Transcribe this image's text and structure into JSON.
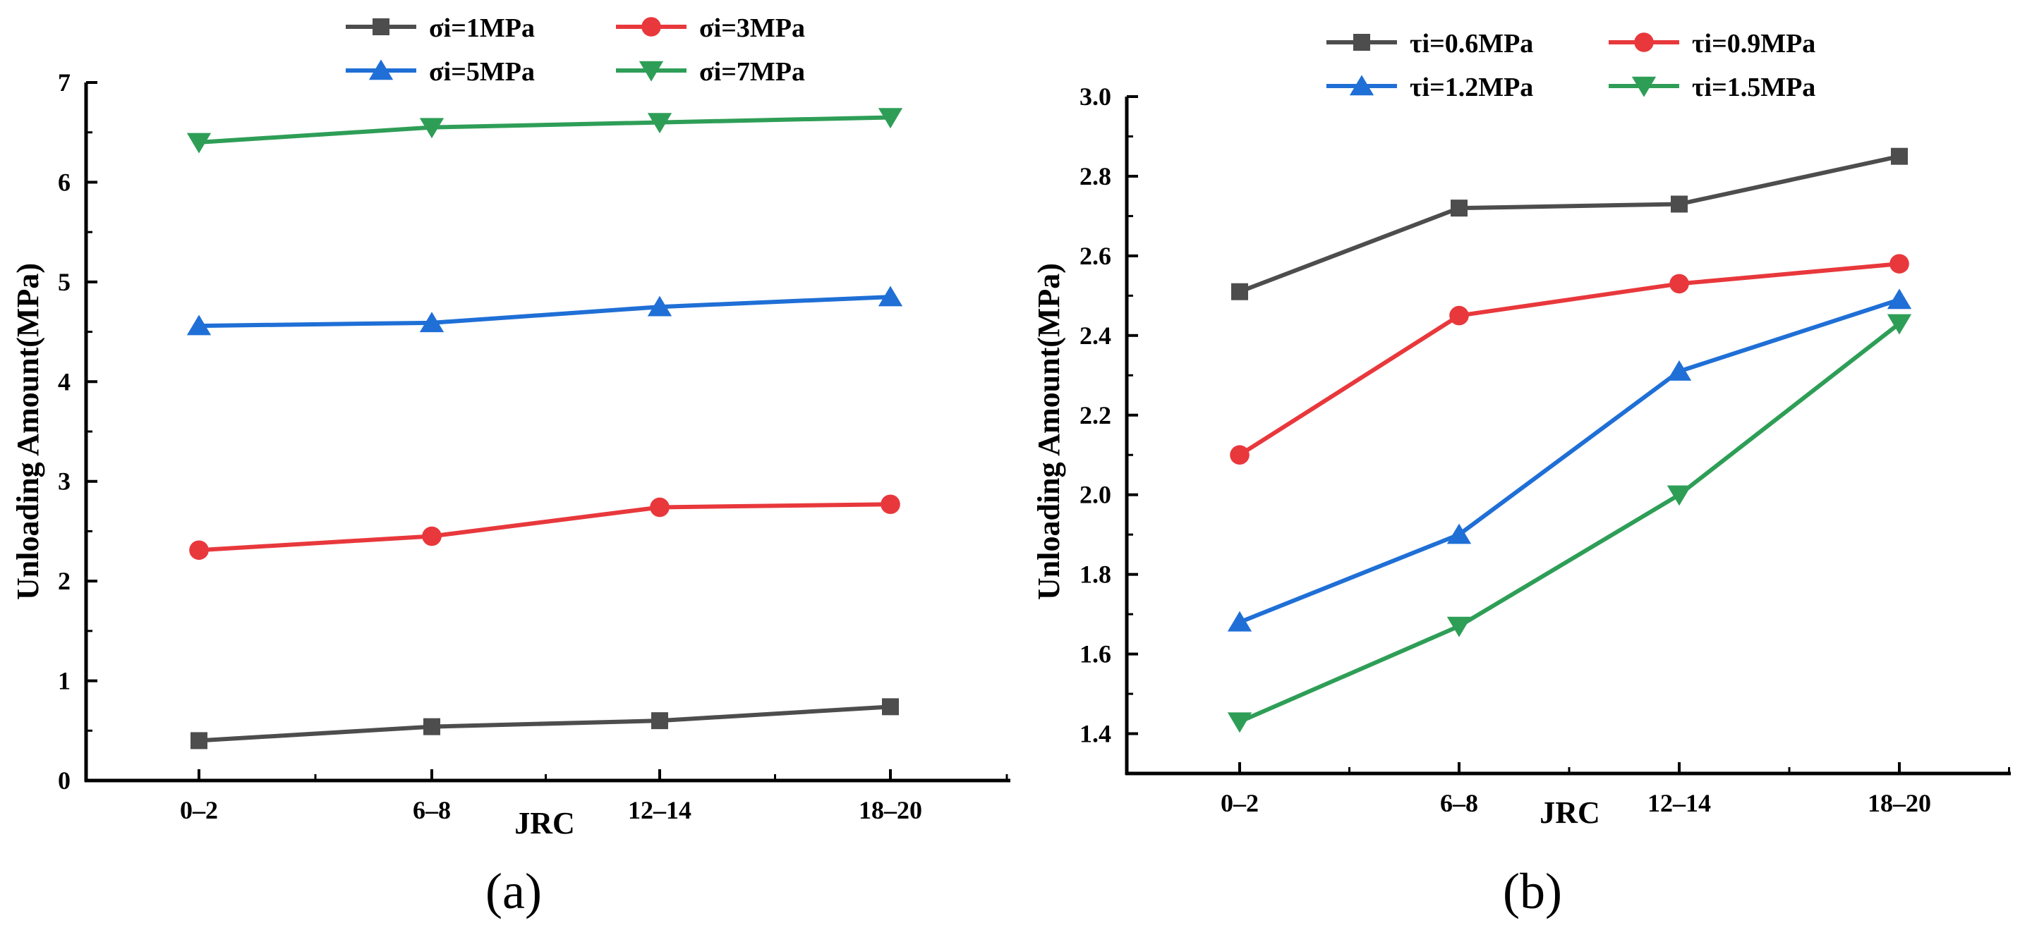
{
  "chart_data": [
    {
      "type": "line",
      "panel_label": "(a)",
      "xlabel": "JRC",
      "ylabel": "Unloading Amount(MPa)",
      "categories": [
        "0–2",
        "6–8",
        "12–14",
        "18–20"
      ],
      "ylim": [
        0,
        7
      ],
      "yticks": [
        "0",
        "1",
        "2",
        "3",
        "4",
        "5",
        "6",
        "7"
      ],
      "legend_position": "top",
      "series": [
        {
          "name": "σi=1MPa",
          "marker": "square",
          "color": "#4d4d4d",
          "values": [
            0.4,
            0.54,
            0.6,
            0.74
          ]
        },
        {
          "name": "σi=3MPa",
          "marker": "circle",
          "color": "#e8383c",
          "values": [
            2.31,
            2.45,
            2.74,
            2.77
          ]
        },
        {
          "name": "σi=5MPa",
          "marker": "triangle",
          "color": "#1f6fd6",
          "values": [
            4.56,
            4.59,
            4.75,
            4.85
          ]
        },
        {
          "name": "σi=7MPa",
          "marker": "triangle-down",
          "color": "#2e9e57",
          "values": [
            6.4,
            6.55,
            6.6,
            6.65
          ]
        }
      ]
    },
    {
      "type": "line",
      "panel_label": "(b)",
      "xlabel": "JRC",
      "ylabel": "Unloading Amount(MPa)",
      "categories": [
        "0–2",
        "6–8",
        "12–14",
        "18–20"
      ],
      "ylim": [
        1.3,
        3.0
      ],
      "yticks": [
        "1.4",
        "1.6",
        "1.8",
        "2.0",
        "2.2",
        "2.4",
        "2.6",
        "2.8",
        "3.0"
      ],
      "legend_position": "top",
      "series": [
        {
          "name": "τi=0.6MPa",
          "marker": "square",
          "color": "#4d4d4d",
          "values": [
            2.51,
            2.72,
            2.73,
            2.85
          ]
        },
        {
          "name": "τi=0.9MPa",
          "marker": "circle",
          "color": "#e8383c",
          "values": [
            2.1,
            2.45,
            2.53,
            2.58
          ]
        },
        {
          "name": "τi=1.2MPa",
          "marker": "triangle",
          "color": "#1f6fd6",
          "values": [
            1.68,
            1.9,
            2.31,
            2.49
          ]
        },
        {
          "name": "τi=1.5MPa",
          "marker": "triangle-down",
          "color": "#2e9e57",
          "values": [
            1.43,
            1.67,
            2.0,
            2.43
          ]
        }
      ]
    }
  ]
}
